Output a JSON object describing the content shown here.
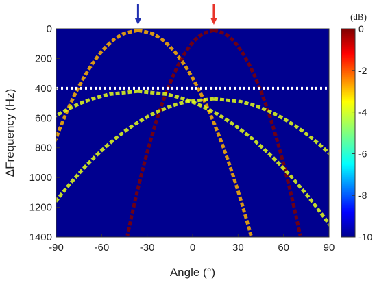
{
  "chart_data": {
    "type": "heatmap",
    "colormap": "jet",
    "xlabel": "Angle (°)",
    "ylabel": "ΔFrequency (Hz)",
    "xlim": [
      -90,
      90
    ],
    "ylim": [
      1400,
      0
    ],
    "x_ticks": [
      "-90",
      "-60",
      "-30",
      "0",
      "30",
      "60",
      "90"
    ],
    "y_ticks": [
      "0",
      "200",
      "400",
      "600",
      "800",
      "1000",
      "1200",
      "1400"
    ],
    "colorbar": {
      "unit": "(dB)",
      "range": [
        -10,
        0
      ],
      "ticks": [
        "0",
        "-2",
        "-4",
        "-6",
        "-8",
        "-10"
      ]
    },
    "reference_line": {
      "axis": "y",
      "value": 400,
      "style": "dotted",
      "color": "#ffffff"
    },
    "markers": [
      {
        "angle": -36,
        "color": "#1f2fb0",
        "type": "arrow"
      },
      {
        "angle": 14,
        "color": "#e8342a",
        "type": "arrow"
      }
    ],
    "features": [
      {
        "kind": "hyperbola",
        "center_angle": -36,
        "freq_start": 10,
        "spread": 34,
        "level_db": -3
      },
      {
        "kind": "hyperbola",
        "center_angle": 14,
        "freq_start": 10,
        "spread": 26,
        "level_db": 0
      },
      {
        "kind": "hyperbola",
        "center_angle": -36,
        "freq_start": 420,
        "spread": 60,
        "level_db": -4
      },
      {
        "kind": "hyperbola",
        "center_angle": 14,
        "freq_start": 470,
        "spread": 55,
        "level_db": -4
      }
    ]
  }
}
